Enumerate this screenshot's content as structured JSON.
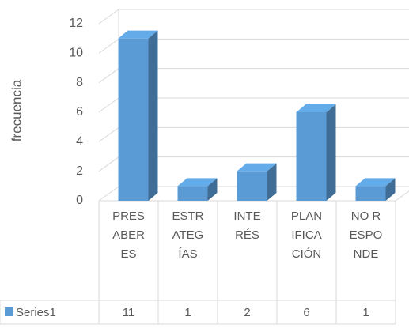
{
  "chart_data": {
    "type": "bar3d",
    "y_label": "frecuencia",
    "categories": [
      "PRESABERES",
      "ESTRATEGÍAS",
      "INTERÉS",
      "PLANIFICACIÓN",
      "NO RESPONDE"
    ],
    "series": [
      {
        "name": "Series1",
        "color": "#5b9bd5",
        "values": [
          11,
          1,
          2,
          6,
          1
        ]
      }
    ],
    "ylim": [
      0,
      12
    ],
    "yticks": [
      0,
      2,
      4,
      6,
      8,
      10,
      12
    ],
    "grid": true,
    "data_table": true
  }
}
